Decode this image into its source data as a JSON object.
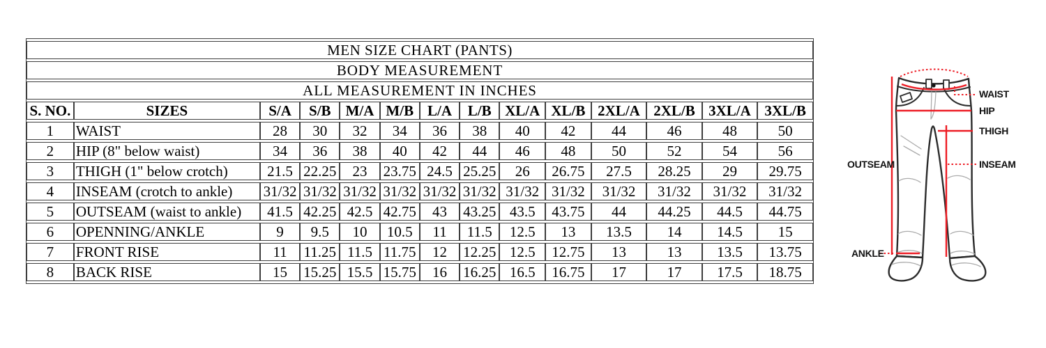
{
  "table": {
    "title": "MEN SIZE CHART (PANTS)",
    "subtitle_1": "BODY MEASUREMENT",
    "subtitle_2": "ALL MEASUREMENT IN INCHES",
    "columns": [
      "S. NO.",
      "SIZES",
      "S/A",
      "S/B",
      "M/A",
      "M/B",
      "L/A",
      "L/B",
      "XL/A",
      "XL/B",
      "2XL/A",
      "2XL/B",
      "3XL/A",
      "3XL/B"
    ],
    "rows": [
      {
        "no": "1",
        "label": "WAIST",
        "values": [
          "28",
          "30",
          "32",
          "34",
          "36",
          "38",
          "40",
          "42",
          "44",
          "46",
          "48",
          "50"
        ]
      },
      {
        "no": "2",
        "label": "HIP (8\" below waist)",
        "values": [
          "34",
          "36",
          "38",
          "40",
          "42",
          "44",
          "46",
          "48",
          "50",
          "52",
          "54",
          "56"
        ]
      },
      {
        "no": "3",
        "label": "THIGH (1\" below crotch)",
        "values": [
          "21.5",
          "22.25",
          "23",
          "23.75",
          "24.5",
          "25.25",
          "26",
          "26.75",
          "27.5",
          "28.25",
          "29",
          "29.75"
        ]
      },
      {
        "no": "4",
        "label": "INSEAM (crotch to ankle)",
        "values": [
          "31/32",
          "31/32",
          "31/32",
          "31/32",
          "31/32",
          "31/32",
          "31/32",
          "31/32",
          "31/32",
          "31/32",
          "31/32",
          "31/32"
        ]
      },
      {
        "no": "5",
        "label": "OUTSEAM (waist to ankle)",
        "values": [
          "41.5",
          "42.25",
          "42.5",
          "42.75",
          "43",
          "43.25",
          "43.5",
          "43.75",
          "44",
          "44.25",
          "44.5",
          "44.75"
        ]
      },
      {
        "no": "6",
        "label": "OPENNING/ANKLE",
        "values": [
          "9",
          "9.5",
          "10",
          "10.5",
          "11",
          "11.5",
          "12.5",
          "13",
          "13.5",
          "14",
          "14.5",
          "15"
        ]
      },
      {
        "no": "7",
        "label": "FRONT RISE",
        "values": [
          "11",
          "11.25",
          "11.5",
          "11.75",
          "12",
          "12.25",
          "12.5",
          "12.75",
          "13",
          "13",
          "13.5",
          "13.75"
        ]
      },
      {
        "no": "8",
        "label": "BACK RISE",
        "values": [
          "15",
          "15.25",
          "15.5",
          "15.75",
          "16",
          "16.25",
          "16.5",
          "16.75",
          "17",
          "17",
          "17.5",
          "18.75"
        ]
      }
    ]
  },
  "diagram": {
    "labels": {
      "waist": "WAIST",
      "hip": "HIP",
      "thigh": "THIGH",
      "inseam": "INSEAM",
      "outseam": "OUTSEAM",
      "ankle": "ANKLE"
    },
    "accent_color": "#ed1c24",
    "outline_color": "#2b2b2b"
  }
}
